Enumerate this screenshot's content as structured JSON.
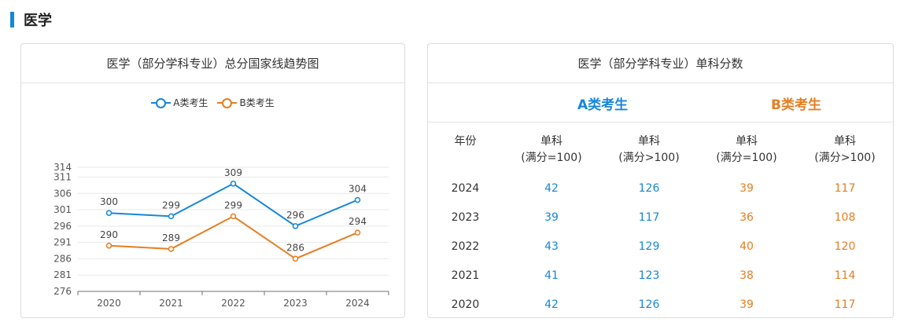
{
  "section": {
    "title": "医学"
  },
  "chart_panel": {
    "title": "医学（部分学科专业）总分国家线趋势图"
  },
  "chart_data": {
    "type": "line",
    "title": "医学（部分学科专业）总分国家线趋势图",
    "categories": [
      "2020",
      "2021",
      "2022",
      "2023",
      "2024"
    ],
    "yticks": [
      276,
      281,
      286,
      291,
      296,
      301,
      306,
      311,
      314
    ],
    "ylim": [
      276,
      314
    ],
    "legend_position": "top",
    "series": [
      {
        "name": "A类考生",
        "color": "#1787d9",
        "values": [
          300,
          299,
          309,
          296,
          304
        ]
      },
      {
        "name": "B类考生",
        "color": "#e67e22",
        "values": [
          290,
          289,
          299,
          286,
          294
        ]
      }
    ]
  },
  "table_panel": {
    "title": "医学（部分学科专业）单科分数",
    "group_a": "A类考生",
    "group_b": "B类考生",
    "headers": [
      {
        "line1": "年份",
        "line2": ""
      },
      {
        "line1": "单科",
        "line2": "(满分=100)"
      },
      {
        "line1": "单科",
        "line2": "(满分>100)"
      },
      {
        "line1": "单科",
        "line2": "(满分=100)"
      },
      {
        "line1": "单科",
        "line2": "(满分>100)"
      }
    ],
    "rows": [
      {
        "year": "2024",
        "a1": "42",
        "a2": "126",
        "b1": "39",
        "b2": "117"
      },
      {
        "year": "2023",
        "a1": "39",
        "a2": "117",
        "b1": "36",
        "b2": "108"
      },
      {
        "year": "2022",
        "a1": "43",
        "a2": "129",
        "b1": "40",
        "b2": "120"
      },
      {
        "year": "2021",
        "a1": "41",
        "a2": "123",
        "b1": "38",
        "b2": "114"
      },
      {
        "year": "2020",
        "a1": "42",
        "a2": "126",
        "b1": "39",
        "b2": "117"
      }
    ]
  }
}
